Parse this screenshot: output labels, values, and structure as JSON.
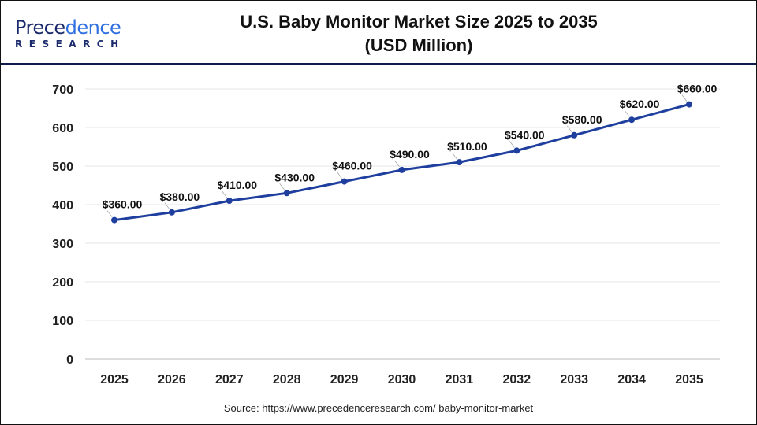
{
  "logo": {
    "brand_top": "Precedence",
    "brand_bottom": "RESEARCH"
  },
  "header": {
    "title_line1": "U.S. Baby Monitor Market Size 2025 to 2035",
    "title_line2": "(USD Million)"
  },
  "source": "Source: https://www.precedenceresearch.com/ baby-monitor-market",
  "chart_data": {
    "type": "line",
    "title": "U.S. Baby Monitor Market Size 2025 to 2035 (USD Million)",
    "categories": [
      "2025",
      "2026",
      "2027",
      "2028",
      "2029",
      "2030",
      "2031",
      "2032",
      "2033",
      "2034",
      "2035"
    ],
    "series": [
      {
        "values": [
          360,
          380,
          410,
          430,
          460,
          490,
          510,
          540,
          580,
          620,
          660
        ],
        "labels": [
          "$360.00",
          "$380.00",
          "$410.00",
          "$430.00",
          "$460.00",
          "$490.00",
          "$510.00",
          "$540.00",
          "$580.00",
          "$620.00",
          "$660.00"
        ]
      }
    ],
    "ylim": [
      0,
      700
    ],
    "yticks": [
      0,
      100,
      200,
      300,
      400,
      500,
      600,
      700
    ],
    "grid": true,
    "line_color": "#1f3f9f"
  }
}
